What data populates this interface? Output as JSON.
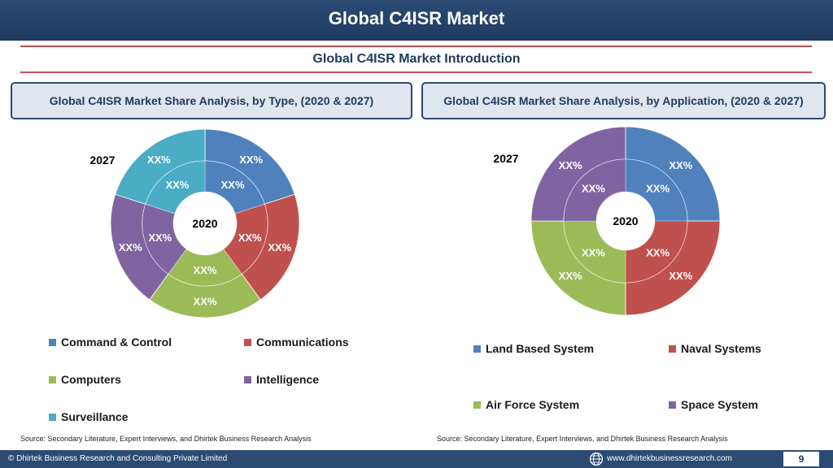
{
  "header": {
    "title": "Global C4ISR Market"
  },
  "subtitle": "Global C4ISR Market  Introduction",
  "left_box": "Global C4ISR Market  Share Analysis, by Type, (2020 & 2027)",
  "right_box": "Global C4ISR Market  Share Analysis, by Application, (2020 & 2027)",
  "chart_data": [
    {
      "type": "pie",
      "outer_label": "2027",
      "inner_label": "2020",
      "categories": [
        "Command & Control",
        "Communications",
        "Computers",
        "Intelligence",
        "Surveillance"
      ],
      "colors": [
        "#4f81bd",
        "#c0504d",
        "#9bbb59",
        "#8064a2",
        "#4bacc6"
      ],
      "series": [
        {
          "values": [
            20,
            20,
            20,
            20,
            20
          ],
          "labels": [
            "XX%",
            "XX%",
            "XX%",
            "XX%",
            "XX%"
          ]
        },
        {
          "values": [
            20,
            20,
            20,
            20,
            20
          ],
          "labels": [
            "XX%",
            "XX%",
            "XX%",
            "XX%",
            "XX%"
          ]
        }
      ]
    },
    {
      "type": "pie",
      "outer_label": "2027",
      "inner_label": "2020",
      "categories": [
        "Land Based System",
        "Naval Systems",
        "Air Force System",
        "Space System"
      ],
      "colors": [
        "#4f81bd",
        "#c0504d",
        "#9bbb59",
        "#8064a2"
      ],
      "series": [
        {
          "values": [
            25,
            25,
            25,
            25
          ],
          "labels": [
            "XX%",
            "XX%",
            "XX%",
            "XX%"
          ]
        },
        {
          "values": [
            25,
            25,
            25,
            25
          ],
          "labels": [
            "XX%",
            "XX%",
            "XX%",
            "XX%"
          ]
        }
      ]
    }
  ],
  "source_left": "Source: Secondary Literature, Expert Interviews, and Dhirtek Business Research Analysis",
  "source_right": "Source: Secondary Literature, Expert Interviews, and Dhirtek Business Research Analysis",
  "footer": {
    "copyright": "© Dhirtek Business Research and Consulting Private Limited",
    "website": "www.dhirtekbusinessresearch.com",
    "page": "9",
    "globe_icon": "globe-icon"
  }
}
